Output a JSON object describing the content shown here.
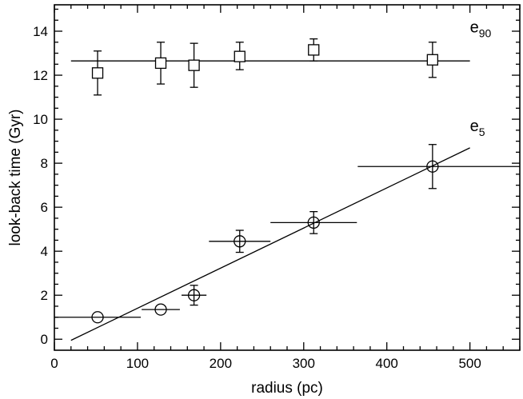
{
  "chart_data": {
    "type": "scatter",
    "title": "",
    "xlabel": "radius (pc)",
    "ylabel": "look-back time (Gyr)",
    "xlim": [
      0,
      560
    ],
    "ylim": [
      -0.5,
      15.2
    ],
    "xticks": [
      "0",
      "100",
      "200",
      "300",
      "400",
      "500"
    ],
    "yticks": [
      "0",
      "2",
      "4",
      "6",
      "8",
      "10",
      "12",
      "14"
    ],
    "grid": false,
    "legend": "none",
    "series": [
      {
        "name": "e",
        "subscript": "90",
        "marker": "square",
        "points": [
          {
            "x": 52,
            "y": 12.1,
            "yerr_low": 1.0,
            "yerr_high": 1.0
          },
          {
            "x": 128,
            "y": 12.55,
            "yerr_low": 0.95,
            "yerr_high": 0.95
          },
          {
            "x": 168,
            "y": 12.45,
            "yerr_low": 1.0,
            "yerr_high": 1.0
          },
          {
            "x": 223,
            "y": 12.85,
            "yerr_low": 0.6,
            "yerr_high": 0.65
          },
          {
            "x": 312,
            "y": 13.15,
            "yerr_low": 0.5,
            "yerr_high": 0.5
          },
          {
            "x": 455,
            "y": 12.7,
            "yerr_low": 0.8,
            "yerr_high": 0.8
          }
        ],
        "fit": {
          "x": [
            20,
            500
          ],
          "y": [
            12.65,
            12.65
          ]
        },
        "label_pos": {
          "x": 500,
          "y": 13.95
        }
      },
      {
        "name": "e",
        "subscript": "5",
        "marker": "circle",
        "points": [
          {
            "x": 52,
            "y": 1.0,
            "xerr_low": 52,
            "xerr_high": 52
          },
          {
            "x": 128,
            "y": 1.35,
            "xerr_low": 23,
            "xerr_high": 23
          },
          {
            "x": 168,
            "y": 2.0,
            "yerr_low": 0.45,
            "yerr_high": 0.45,
            "xerr_low": 15,
            "xerr_high": 15
          },
          {
            "x": 223,
            "y": 4.45,
            "yerr_low": 0.5,
            "yerr_high": 0.5,
            "xerr_low": 37,
            "xerr_high": 37
          },
          {
            "x": 312,
            "y": 5.3,
            "yerr_low": 0.5,
            "yerr_high": 0.5,
            "xerr_low": 52,
            "xerr_high": 52
          },
          {
            "x": 455,
            "y": 7.85,
            "yerr_low": 1.0,
            "yerr_high": 1.0,
            "xerr_low": 90,
            "xerr_high": 105
          }
        ],
        "fit": {
          "x": [
            20,
            500
          ],
          "y": [
            -0.05,
            8.7
          ]
        },
        "label_pos": {
          "x": 500,
          "y": 9.45
        }
      }
    ]
  }
}
